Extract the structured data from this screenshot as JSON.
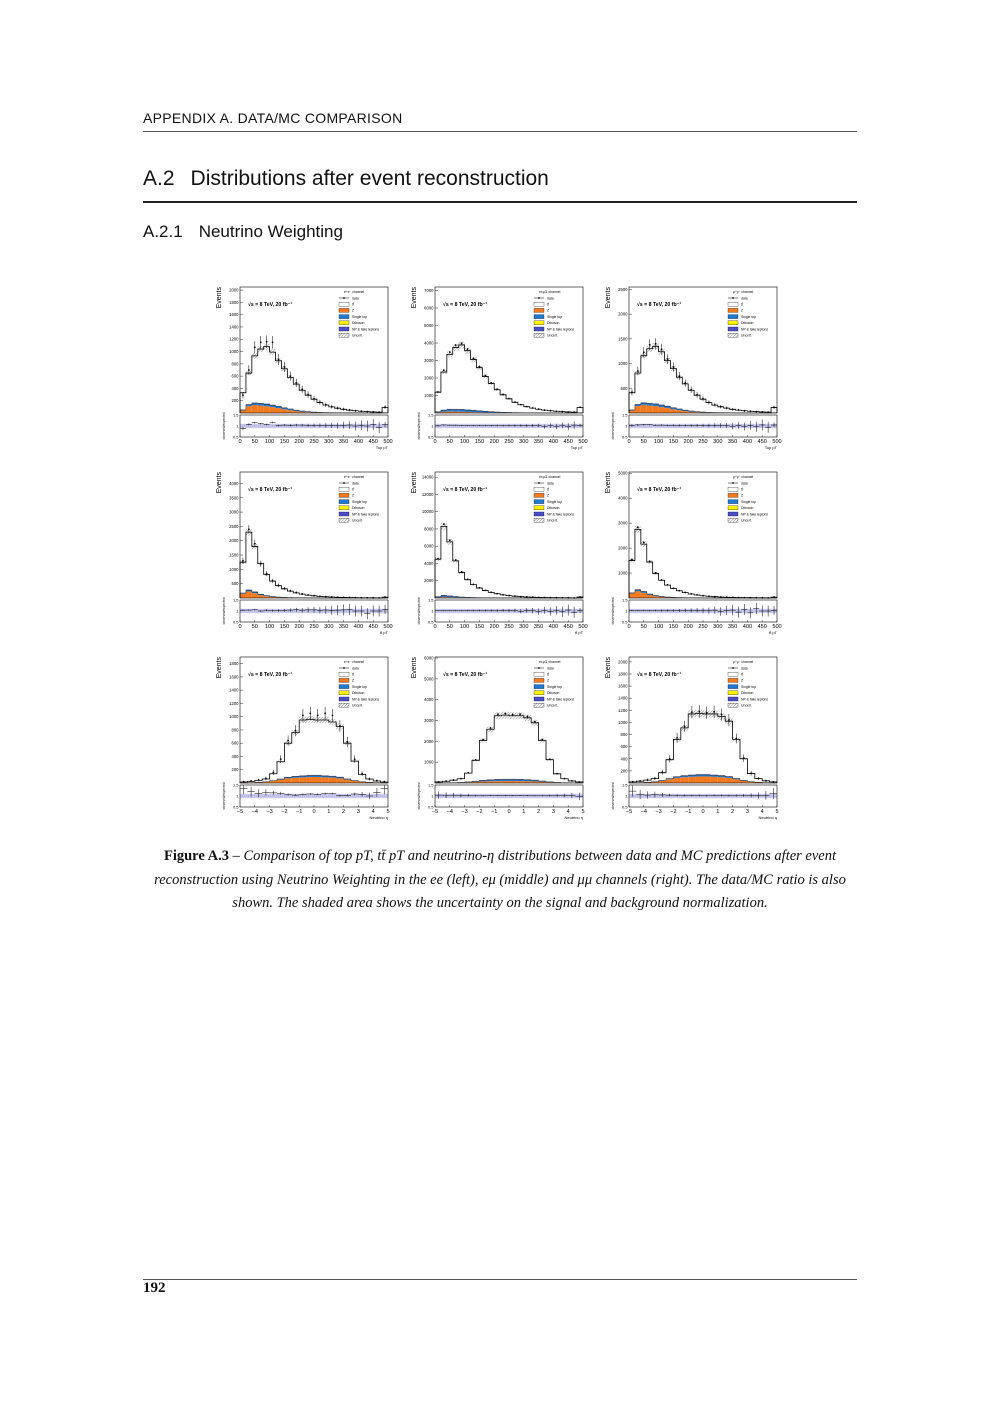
{
  "header": {
    "running_title": "APPENDIX A.  DATA/MC COMPARISON",
    "section_number": "A.2",
    "section_title": "Distributions after event reconstruction",
    "subsection_number": "A.2.1",
    "subsection_title": "Neutrino Weighting"
  },
  "legend": {
    "data": "data",
    "ttbar": "tt̄",
    "z": "Z",
    "single_top": "Single top",
    "diboson": "Diboson",
    "np": "NP & fake leptons",
    "uncert": "Uncert."
  },
  "energy_label": "√s = 8 TeV, 20 fb⁻¹",
  "ylabel": "Events",
  "ratio_label": "observed/expected",
  "colors": {
    "z": "#f47a20",
    "single_top": "#1f78d1",
    "diboson": "#fff000",
    "np": "#4a4fc8",
    "ratio_band": "#c8c8f0"
  },
  "chart_data": [
    {
      "type": "bar",
      "channel": "e⁺e⁻ channel",
      "xlabel": "Top pT",
      "xlim": [
        0,
        500
      ],
      "xticks": [
        0,
        50,
        100,
        150,
        200,
        250,
        300,
        350,
        400,
        450,
        500
      ],
      "ylim": [
        0,
        2050
      ],
      "yticks": [
        200,
        400,
        600,
        800,
        1000,
        1200,
        1400,
        1600,
        1800,
        2000
      ],
      "mc": [
        330,
        650,
        930,
        1040,
        1080,
        990,
        850,
        720,
        580,
        470,
        370,
        290,
        225,
        170,
        130,
        100,
        78,
        60,
        46,
        36,
        28,
        22,
        17,
        14,
        90
      ],
      "data": [
        290,
        700,
        1070,
        1150,
        1160,
        1150,
        870,
        750,
        600,
        490,
        385,
        300,
        232,
        175,
        133,
        103,
        79,
        62,
        48,
        36,
        29,
        22,
        18,
        13,
        95
      ],
      "z": [
        40,
        110,
        130,
        120,
        110,
        95,
        80,
        60,
        45,
        30,
        20,
        13,
        8,
        5,
        3,
        2,
        2,
        1,
        1,
        1,
        0,
        0,
        0,
        0,
        2
      ],
      "single_top": [
        10,
        25,
        30,
        32,
        32,
        30,
        27,
        23,
        19,
        15,
        12,
        9,
        7,
        5,
        4,
        3,
        2,
        2,
        1,
        1,
        1,
        1,
        0,
        0,
        3
      ]
    },
    {
      "type": "bar",
      "channel": "e±μ∓ channel",
      "xlabel": "Top pT",
      "xlim": [
        0,
        500
      ],
      "xticks": [
        0,
        50,
        100,
        150,
        200,
        250,
        300,
        350,
        400,
        450,
        500
      ],
      "ylim": [
        0,
        7200
      ],
      "yticks": [
        1000,
        2000,
        3000,
        4000,
        5000,
        6000,
        7000
      ],
      "mc": [
        1190,
        2340,
        3350,
        3740,
        3890,
        3560,
        3060,
        2590,
        2090,
        1690,
        1330,
        1040,
        810,
        610,
        470,
        360,
        280,
        215,
        165,
        130,
        100,
        80,
        60,
        50,
        320
      ],
      "data": [
        1200,
        2450,
        3480,
        3880,
        3980,
        3650,
        3120,
        2650,
        2140,
        1720,
        1360,
        1060,
        830,
        620,
        480,
        365,
        285,
        220,
        160,
        132,
        98,
        82,
        58,
        52,
        330
      ],
      "z": [
        30,
        70,
        90,
        80,
        70,
        60,
        50,
        40,
        30,
        20,
        13,
        8,
        5,
        3,
        2,
        1,
        1,
        1,
        0,
        0,
        0,
        0,
        0,
        0,
        1
      ],
      "single_top": [
        40,
        90,
        110,
        115,
        115,
        105,
        95,
        80,
        65,
        52,
        40,
        30,
        24,
        18,
        14,
        10,
        8,
        6,
        5,
        4,
        3,
        2,
        2,
        1,
        10
      ]
    },
    {
      "type": "bar",
      "channel": "μ⁺μ⁻ channel",
      "xlabel": "Top pT",
      "xlim": [
        0,
        500
      ],
      "xticks": [
        0,
        50,
        100,
        150,
        200,
        250,
        300,
        350,
        400,
        450,
        500
      ],
      "ylim": [
        0,
        2550
      ],
      "yticks": [
        500,
        1000,
        1500,
        2000,
        2500
      ],
      "mc": [
        410,
        810,
        1160,
        1300,
        1350,
        1240,
        1060,
        900,
        725,
        590,
        460,
        360,
        280,
        210,
        160,
        125,
        98,
        75,
        58,
        45,
        35,
        28,
        21,
        18,
        110
      ],
      "data": [
        420,
        850,
        1230,
        1380,
        1400,
        1290,
        1090,
        930,
        745,
        605,
        470,
        370,
        288,
        215,
        165,
        128,
        100,
        74,
        60,
        44,
        36,
        27,
        22,
        17,
        115
      ],
      "z": [
        50,
        140,
        165,
        150,
        140,
        120,
        100,
        75,
        56,
        38,
        25,
        16,
        10,
        6,
        4,
        3,
        2,
        1,
        1,
        1,
        0,
        0,
        0,
        0,
        2
      ],
      "single_top": [
        12,
        30,
        38,
        40,
        40,
        38,
        34,
        29,
        24,
        19,
        15,
        11,
        9,
        6,
        5,
        4,
        3,
        2,
        1,
        1,
        1,
        1,
        0,
        0,
        4
      ]
    },
    {
      "type": "bar",
      "channel": "e⁺e⁻ channel",
      "xlabel": "tt̄ pT",
      "xlim": [
        0,
        500
      ],
      "xticks": [
        0,
        50,
        100,
        150,
        200,
        250,
        300,
        350,
        400,
        450,
        500
      ],
      "ylim": [
        0,
        4400
      ],
      "yticks": [
        500,
        1000,
        1500,
        2000,
        2500,
        3000,
        3500,
        4000
      ],
      "mc": [
        1250,
        2300,
        1800,
        1200,
        820,
        590,
        430,
        320,
        240,
        180,
        135,
        100,
        76,
        58,
        44,
        34,
        26,
        20,
        16,
        12,
        10,
        8,
        6,
        5,
        30
      ],
      "data": [
        1300,
        2400,
        1900,
        1200,
        850,
        600,
        440,
        330,
        250,
        190,
        140,
        105,
        80,
        60,
        46,
        35,
        27,
        21,
        17,
        12,
        10,
        7,
        6,
        5,
        32
      ],
      "z": [
        150,
        230,
        170,
        100,
        60,
        35,
        22,
        14,
        9,
        6,
        4,
        3,
        2,
        1,
        1,
        1,
        0,
        0,
        0,
        0,
        0,
        0,
        0,
        0,
        1
      ],
      "single_top": [
        20,
        40,
        40,
        30,
        22,
        16,
        12,
        9,
        7,
        5,
        4,
        3,
        2,
        2,
        1,
        1,
        1,
        1,
        0,
        0,
        0,
        0,
        0,
        0,
        1
      ]
    },
    {
      "type": "bar",
      "channel": "e±μ∓ channel",
      "xlabel": "tt̄ pT",
      "xlim": [
        0,
        500
      ],
      "xticks": [
        0,
        50,
        100,
        150,
        200,
        250,
        300,
        350,
        400,
        450,
        500
      ],
      "ylim": [
        0,
        14600
      ],
      "yticks": [
        2000,
        4000,
        6000,
        8000,
        10000,
        12000,
        14000
      ],
      "mc": [
        4500,
        8300,
        6500,
        4300,
        2950,
        2120,
        1550,
        1150,
        860,
        650,
        490,
        360,
        275,
        210,
        160,
        120,
        95,
        72,
        58,
        44,
        36,
        28,
        22,
        18,
        110
      ],
      "data": [
        4550,
        8550,
        6700,
        4400,
        3020,
        2170,
        1580,
        1180,
        880,
        665,
        500,
        372,
        280,
        215,
        158,
        124,
        97,
        70,
        60,
        43,
        37,
        27,
        23,
        17,
        112
      ],
      "z": [
        60,
        110,
        80,
        45,
        28,
        16,
        10,
        6,
        4,
        3,
        2,
        1,
        1,
        0,
        0,
        0,
        0,
        0,
        0,
        0,
        0,
        0,
        0,
        0,
        0
      ],
      "single_top": [
        80,
        150,
        140,
        105,
        78,
        56,
        42,
        31,
        24,
        18,
        14,
        10,
        7,
        6,
        4,
        3,
        3,
        2,
        1,
        1,
        1,
        1,
        0,
        0,
        3
      ]
    },
    {
      "type": "bar",
      "channel": "μ⁺μ⁻ channel",
      "xlabel": "tt̄ pT",
      "xlim": [
        0,
        500
      ],
      "xticks": [
        0,
        50,
        100,
        150,
        200,
        250,
        300,
        350,
        400,
        450,
        500
      ],
      "ylim": [
        0,
        5050
      ],
      "yticks": [
        1000,
        2000,
        3000,
        4000,
        5000
      ],
      "mc": [
        1500,
        2750,
        2160,
        1440,
        985,
        710,
        515,
        385,
        290,
        215,
        160,
        120,
        90,
        70,
        53,
        41,
        31,
        24,
        19,
        14,
        12,
        9,
        7,
        6,
        36
      ],
      "data": [
        1540,
        2830,
        2230,
        1470,
        1010,
        725,
        528,
        392,
        296,
        222,
        164,
        124,
        92,
        71,
        55,
        40,
        32,
        25,
        18,
        15,
        11,
        10,
        7,
        6,
        37
      ],
      "z": [
        180,
        275,
        205,
        120,
        72,
        42,
        26,
        17,
        11,
        7,
        5,
        4,
        2,
        1,
        1,
        1,
        0,
        0,
        0,
        0,
        0,
        0,
        0,
        0,
        1
      ],
      "single_top": [
        24,
        48,
        48,
        36,
        26,
        19,
        14,
        11,
        8,
        6,
        5,
        4,
        2,
        2,
        1,
        1,
        1,
        1,
        0,
        0,
        0,
        0,
        0,
        0,
        1
      ]
    },
    {
      "type": "bar",
      "channel": "e⁺e⁻ channel",
      "xlabel": "Neutrino η",
      "xlim": [
        -5,
        5
      ],
      "xticks": [
        -5,
        -4,
        -3,
        -2,
        -1,
        0,
        1,
        2,
        3,
        4,
        5
      ],
      "ylim": [
        0,
        1900
      ],
      "yticks": [
        200,
        400,
        600,
        800,
        1000,
        1200,
        1400,
        1600,
        1800
      ],
      "mc": [
        15,
        25,
        40,
        60,
        140,
        320,
        600,
        760,
        950,
        960,
        950,
        950,
        920,
        850,
        600,
        330,
        130,
        60,
        30,
        15
      ],
      "data": [
        20,
        30,
        45,
        70,
        160,
        360,
        640,
        790,
        1020,
        1050,
        1020,
        1050,
        1020,
        860,
        620,
        360,
        140,
        60,
        35,
        20
      ],
      "z": [
        2,
        4,
        8,
        15,
        30,
        50,
        70,
        80,
        85,
        90,
        90,
        85,
        80,
        70,
        50,
        30,
        15,
        8,
        4,
        2
      ],
      "single_top": [
        0,
        1,
        2,
        3,
        6,
        10,
        15,
        18,
        20,
        22,
        22,
        20,
        18,
        15,
        10,
        6,
        3,
        2,
        1,
        0
      ]
    },
    {
      "type": "bar",
      "channel": "e±μ∓ channel",
      "xlabel": "Neutrino η",
      "xlim": [
        -5,
        5
      ],
      "xticks": [
        -5,
        -4,
        -3,
        -2,
        -1,
        0,
        1,
        2,
        3,
        4,
        5
      ],
      "ylim": [
        0,
        6050
      ],
      "yticks": [
        1000,
        2000,
        3000,
        4000,
        5000,
        6000
      ],
      "mc": [
        50,
        85,
        135,
        205,
        475,
        1090,
        2040,
        2580,
        3230,
        3260,
        3230,
        3230,
        3130,
        2890,
        2040,
        1120,
        440,
        205,
        100,
        50
      ],
      "data": [
        52,
        88,
        140,
        210,
        490,
        1110,
        2080,
        2640,
        3300,
        3330,
        3290,
        3300,
        3200,
        2940,
        2080,
        1140,
        450,
        210,
        102,
        49
      ],
      "z": [
        3,
        6,
        10,
        18,
        35,
        55,
        75,
        85,
        90,
        95,
        95,
        90,
        85,
        75,
        55,
        35,
        18,
        10,
        6,
        3
      ],
      "single_top": [
        1,
        3,
        5,
        9,
        18,
        32,
        50,
        60,
        66,
        70,
        70,
        66,
        60,
        50,
        32,
        18,
        9,
        5,
        3,
        1
      ]
    },
    {
      "type": "bar",
      "channel": "μ⁺μ⁻ channel",
      "xlabel": "Neutrino η",
      "xlim": [
        -5,
        5
      ],
      "xticks": [
        -5,
        -4,
        -3,
        -2,
        -1,
        0,
        1,
        2,
        3,
        4,
        5
      ],
      "ylim": [
        0,
        2080
      ],
      "yticks": [
        200,
        400,
        600,
        800,
        1000,
        1200,
        1400,
        1600,
        1800,
        2000
      ],
      "mc": [
        18,
        30,
        48,
        72,
        170,
        385,
        720,
        910,
        1140,
        1150,
        1140,
        1140,
        1100,
        1020,
        720,
        400,
        156,
        72,
        36,
        18
      ],
      "data": [
        22,
        32,
        50,
        76,
        178,
        400,
        745,
        935,
        1170,
        1180,
        1160,
        1175,
        1130,
        1040,
        735,
        410,
        160,
        74,
        37,
        20
      ],
      "z": [
        3,
        5,
        10,
        18,
        36,
        60,
        84,
        96,
        102,
        108,
        108,
        102,
        96,
        84,
        60,
        36,
        18,
        10,
        5,
        3
      ],
      "single_top": [
        0,
        1,
        2,
        4,
        7,
        12,
        18,
        22,
        24,
        26,
        26,
        24,
        22,
        18,
        12,
        7,
        4,
        2,
        1,
        0
      ]
    }
  ],
  "caption": {
    "label": "Figure A.3",
    "text": " – Comparison of top pT, tt̄ pT and neutrino-η distributions between data and MC predictions after event reconstruction using Neutrino Weighting in the ee (left), eμ (middle) and μμ channels (right). The data/MC ratio is also shown. The shaded area shows the uncertainty on the signal and background normalization."
  },
  "page_number": "192"
}
